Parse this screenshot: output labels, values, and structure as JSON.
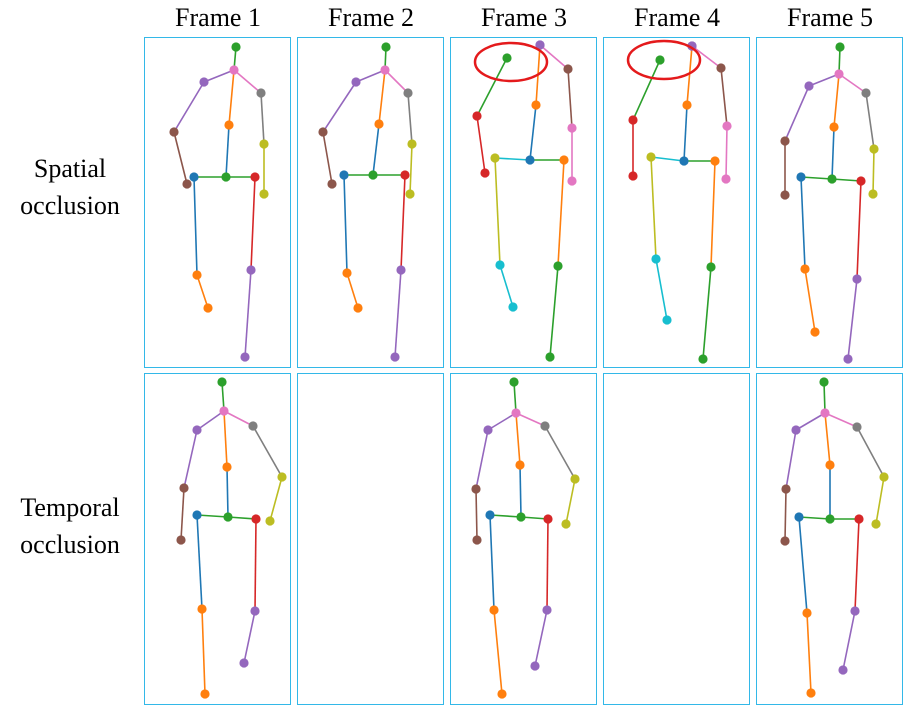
{
  "frames": [
    "Frame 1",
    "Frame 2",
    "Frame 3",
    "Frame 4",
    "Frame 5"
  ],
  "rows": [
    {
      "label_line1": "Spatial",
      "label_line2": "occlusion"
    },
    {
      "label_line1": "Temporal",
      "label_line2": "occlusion"
    }
  ],
  "panel_border_color": "#33b8e8",
  "highlight_color": "#e41a1c",
  "joint_colors": {
    "head": "#2ca02c",
    "neck": "#e377c2",
    "l_shoulder": "#9467bd",
    "l_elbow": "#8c564b",
    "l_wrist": "#8c564b",
    "r_shoulder": "#7f7f7f",
    "r_elbow": "#bcbd22",
    "r_wrist": "#bcbd22",
    "spine": "#ff7f0e",
    "pelvis": "#2ca02c",
    "l_hip": "#1f77b4",
    "l_knee": "#ff7f0e",
    "l_ankle": "#ff7f0e",
    "r_hip": "#d62728",
    "r_knee": "#9467bd",
    "r_ankle": "#9467bd"
  }
}
